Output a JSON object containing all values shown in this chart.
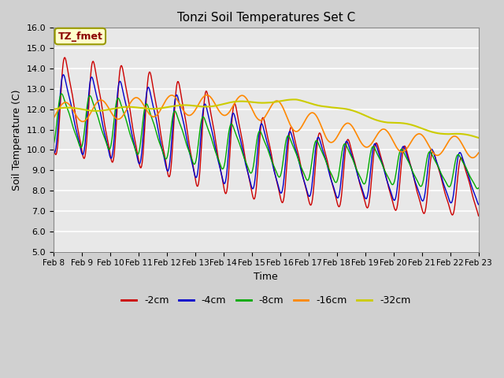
{
  "title": "Tonzi Soil Temperatures Set C",
  "xlabel": "Time",
  "ylabel": "Soil Temperature (C)",
  "ylim": [
    5.0,
    16.0
  ],
  "yticks": [
    5.0,
    6.0,
    7.0,
    8.0,
    9.0,
    10.0,
    11.0,
    12.0,
    13.0,
    14.0,
    15.0,
    16.0
  ],
  "xtick_labels": [
    "Feb 8",
    "Feb 9",
    "Feb 10",
    "Feb 11",
    "Feb 12",
    "Feb 13",
    "Feb 14",
    "Feb 15",
    "Feb 16",
    "Feb 17",
    "Feb 18",
    "Feb 19",
    "Feb 20",
    "Feb 21",
    "Feb 22",
    "Feb 23"
  ],
  "legend_labels": [
    "-2cm",
    "-4cm",
    "-8cm",
    "-16cm",
    "-32cm"
  ],
  "legend_colors": [
    "#cc0000",
    "#0000cc",
    "#00aa00",
    "#ff8800",
    "#cccc00"
  ],
  "annotation_text": "TZ_fmet",
  "annotation_bg": "#ffffcc",
  "annotation_border": "#999900",
  "bg_color": "#e8e8e8",
  "grid_color": "#ffffff",
  "n_points": 720,
  "days": 15
}
